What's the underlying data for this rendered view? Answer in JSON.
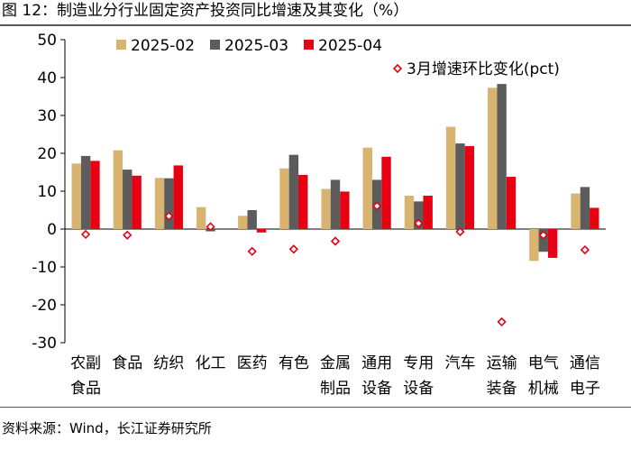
{
  "header": {
    "title": "图 12：制造业分行业固定资产投资同比增速及其变化（%）"
  },
  "footer": {
    "source": "资料来源：Wind，长江证券研究所"
  },
  "chart_data": {
    "type": "bar",
    "title": "图 12：制造业分行业固定资产投资同比增速及其变化（%）",
    "ylabel": "%",
    "ylim": [
      -30,
      50
    ],
    "yticks": [
      50,
      40,
      30,
      20,
      10,
      0,
      -10,
      -20,
      -30
    ],
    "grid": false,
    "legend_position": "top-right",
    "categories": [
      [
        "农副",
        "食品"
      ],
      [
        "食品"
      ],
      [
        "纺织"
      ],
      [
        "化工"
      ],
      [
        "医药"
      ],
      [
        "有色"
      ],
      [
        "金属",
        "制品"
      ],
      [
        "通用",
        "设备"
      ],
      [
        "专用",
        "设备"
      ],
      [
        "汽车"
      ],
      [
        "运输",
        "装备"
      ],
      [
        "电气",
        "机械"
      ],
      [
        "通信",
        "电子"
      ]
    ],
    "series": [
      {
        "name": "2025-02",
        "kind": "bar",
        "color": "#d9b370",
        "values": [
          17.3,
          20.8,
          13.5,
          5.8,
          3.5,
          16.0,
          10.6,
          21.5,
          8.8,
          27.0,
          37.3,
          -8.4,
          9.4
        ]
      },
      {
        "name": "2025-03",
        "kind": "bar",
        "color": "#5c5c5c",
        "values": [
          19.3,
          15.7,
          13.4,
          -0.6,
          5.0,
          19.6,
          13.0,
          13.0,
          7.3,
          22.6,
          38.3,
          -6.0,
          11.1
        ]
      },
      {
        "name": "2025-04",
        "kind": "bar",
        "color": "#e60012",
        "values": [
          18.0,
          14.1,
          16.8,
          0.0,
          -0.9,
          14.3,
          9.9,
          19.1,
          8.8,
          21.9,
          13.8,
          -7.6,
          5.6
        ]
      },
      {
        "name": "3月增速环比变化(pct)",
        "kind": "marker",
        "color": "#e60012",
        "values": [
          -1.4,
          -1.6,
          3.4,
          0.6,
          -5.9,
          -5.3,
          -3.2,
          6.1,
          1.5,
          -0.7,
          -24.5,
          -1.6,
          -5.5
        ]
      }
    ]
  }
}
